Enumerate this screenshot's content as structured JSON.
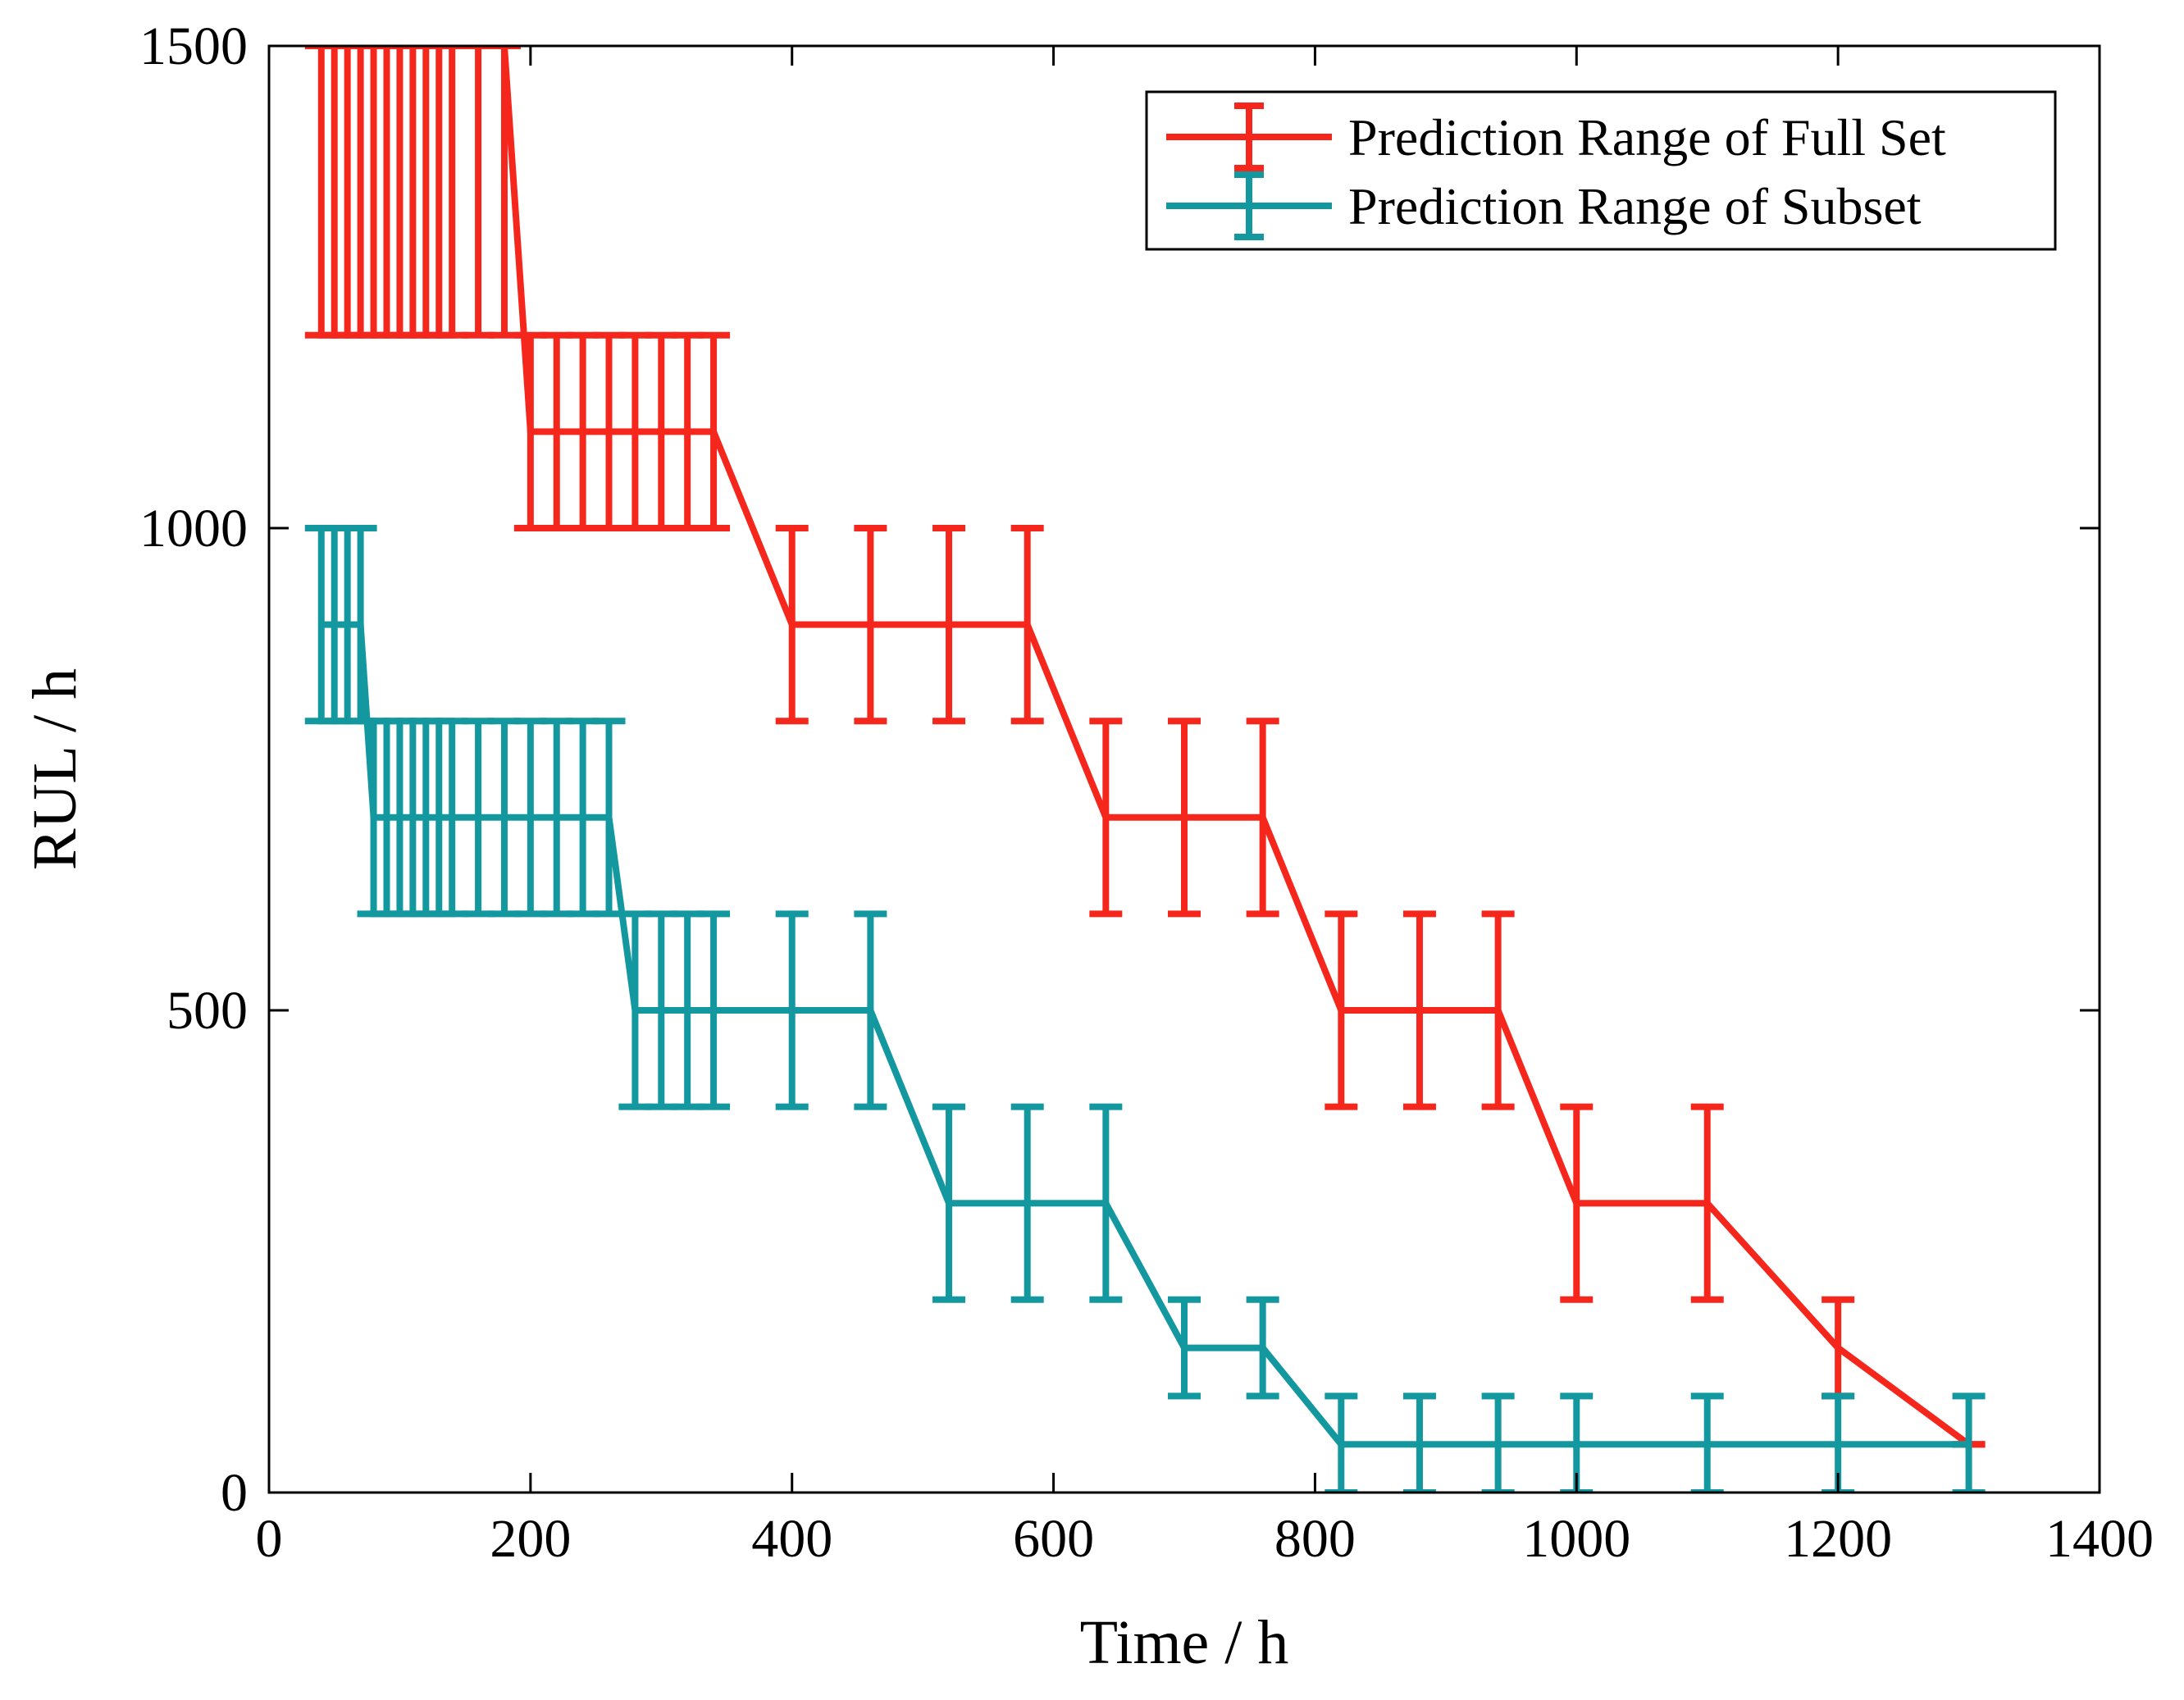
{
  "chart_data": {
    "type": "line",
    "xlabel": "Time / h",
    "ylabel": "RUL / h",
    "xlim": [
      0,
      1400
    ],
    "ylim": [
      0,
      1500
    ],
    "xticks": [
      0,
      200,
      400,
      600,
      800,
      1000,
      1200,
      1400
    ],
    "yticks": [
      0,
      500,
      1000,
      1500
    ],
    "grid": false,
    "legend_position": "top-right",
    "series": [
      {
        "name": "Prediction Range of Full Set",
        "color": "#f5271c",
        "points": [
          {
            "x": 40,
            "y": 1500,
            "low": 1200,
            "high": 1500
          },
          {
            "x": 50,
            "y": 1500,
            "low": 1200,
            "high": 1500
          },
          {
            "x": 60,
            "y": 1500,
            "low": 1200,
            "high": 1500
          },
          {
            "x": 70,
            "y": 1500,
            "low": 1200,
            "high": 1500
          },
          {
            "x": 80,
            "y": 1500,
            "low": 1200,
            "high": 1500
          },
          {
            "x": 90,
            "y": 1500,
            "low": 1200,
            "high": 1500
          },
          {
            "x": 100,
            "y": 1500,
            "low": 1200,
            "high": 1500
          },
          {
            "x": 110,
            "y": 1500,
            "low": 1200,
            "high": 1500
          },
          {
            "x": 120,
            "y": 1500,
            "low": 1200,
            "high": 1500
          },
          {
            "x": 130,
            "y": 1500,
            "low": 1200,
            "high": 1500
          },
          {
            "x": 140,
            "y": 1500,
            "low": 1200,
            "high": 1500
          },
          {
            "x": 160,
            "y": 1500,
            "low": 1200,
            "high": 1500
          },
          {
            "x": 180,
            "y": 1500,
            "low": 1200,
            "high": 1500
          },
          {
            "x": 200,
            "y": 1100,
            "low": 1000,
            "high": 1200
          },
          {
            "x": 220,
            "y": 1100,
            "low": 1000,
            "high": 1200
          },
          {
            "x": 240,
            "y": 1100,
            "low": 1000,
            "high": 1200
          },
          {
            "x": 260,
            "y": 1100,
            "low": 1000,
            "high": 1200
          },
          {
            "x": 280,
            "y": 1100,
            "low": 1000,
            "high": 1200
          },
          {
            "x": 300,
            "y": 1100,
            "low": 1000,
            "high": 1200
          },
          {
            "x": 320,
            "y": 1100,
            "low": 1000,
            "high": 1200
          },
          {
            "x": 340,
            "y": 1100,
            "low": 1000,
            "high": 1200
          },
          {
            "x": 400,
            "y": 900,
            "low": 800,
            "high": 1000
          },
          {
            "x": 460,
            "y": 900,
            "low": 800,
            "high": 1000
          },
          {
            "x": 520,
            "y": 900,
            "low": 800,
            "high": 1000
          },
          {
            "x": 580,
            "y": 900,
            "low": 800,
            "high": 1000
          },
          {
            "x": 640,
            "y": 700,
            "low": 600,
            "high": 800
          },
          {
            "x": 700,
            "y": 700,
            "low": 600,
            "high": 800
          },
          {
            "x": 760,
            "y": 700,
            "low": 600,
            "high": 800
          },
          {
            "x": 820,
            "y": 500,
            "low": 400,
            "high": 600
          },
          {
            "x": 880,
            "y": 500,
            "low": 400,
            "high": 600
          },
          {
            "x": 940,
            "y": 500,
            "low": 400,
            "high": 600
          },
          {
            "x": 1000,
            "y": 300,
            "low": 200,
            "high": 400
          },
          {
            "x": 1100,
            "y": 300,
            "low": 200,
            "high": 400
          },
          {
            "x": 1200,
            "y": 150,
            "low": 100,
            "high": 200
          },
          {
            "x": 1300,
            "y": 50,
            "low": 50,
            "high": 50
          }
        ]
      },
      {
        "name": "Prediction Range of Subset",
        "color": "#13989f",
        "points": [
          {
            "x": 40,
            "y": 900,
            "low": 800,
            "high": 1000
          },
          {
            "x": 50,
            "y": 900,
            "low": 800,
            "high": 1000
          },
          {
            "x": 60,
            "y": 900,
            "low": 800,
            "high": 1000
          },
          {
            "x": 70,
            "y": 900,
            "low": 800,
            "high": 1000
          },
          {
            "x": 80,
            "y": 700,
            "low": 600,
            "high": 800
          },
          {
            "x": 90,
            "y": 700,
            "low": 600,
            "high": 800
          },
          {
            "x": 100,
            "y": 700,
            "low": 600,
            "high": 800
          },
          {
            "x": 110,
            "y": 700,
            "low": 600,
            "high": 800
          },
          {
            "x": 120,
            "y": 700,
            "low": 600,
            "high": 800
          },
          {
            "x": 130,
            "y": 700,
            "low": 600,
            "high": 800
          },
          {
            "x": 140,
            "y": 700,
            "low": 600,
            "high": 800
          },
          {
            "x": 160,
            "y": 700,
            "low": 600,
            "high": 800
          },
          {
            "x": 180,
            "y": 700,
            "low": 600,
            "high": 800
          },
          {
            "x": 200,
            "y": 700,
            "low": 600,
            "high": 800
          },
          {
            "x": 220,
            "y": 700,
            "low": 600,
            "high": 800
          },
          {
            "x": 240,
            "y": 700,
            "low": 600,
            "high": 800
          },
          {
            "x": 260,
            "y": 700,
            "low": 600,
            "high": 800
          },
          {
            "x": 280,
            "y": 500,
            "low": 400,
            "high": 600
          },
          {
            "x": 300,
            "y": 500,
            "low": 400,
            "high": 600
          },
          {
            "x": 320,
            "y": 500,
            "low": 400,
            "high": 600
          },
          {
            "x": 340,
            "y": 500,
            "low": 400,
            "high": 600
          },
          {
            "x": 400,
            "y": 500,
            "low": 400,
            "high": 600
          },
          {
            "x": 460,
            "y": 500,
            "low": 400,
            "high": 600
          },
          {
            "x": 520,
            "y": 300,
            "low": 200,
            "high": 400
          },
          {
            "x": 580,
            "y": 300,
            "low": 200,
            "high": 400
          },
          {
            "x": 640,
            "y": 300,
            "low": 200,
            "high": 400
          },
          {
            "x": 700,
            "y": 150,
            "low": 100,
            "high": 200
          },
          {
            "x": 760,
            "y": 150,
            "low": 100,
            "high": 200
          },
          {
            "x": 820,
            "y": 50,
            "low": 0,
            "high": 100
          },
          {
            "x": 880,
            "y": 50,
            "low": 0,
            "high": 100
          },
          {
            "x": 940,
            "y": 50,
            "low": 0,
            "high": 100
          },
          {
            "x": 1000,
            "y": 50,
            "low": 0,
            "high": 100
          },
          {
            "x": 1100,
            "y": 50,
            "low": 0,
            "high": 100
          },
          {
            "x": 1200,
            "y": 50,
            "low": 0,
            "high": 100
          },
          {
            "x": 1300,
            "y": 50,
            "low": 0,
            "high": 100
          }
        ]
      }
    ]
  }
}
